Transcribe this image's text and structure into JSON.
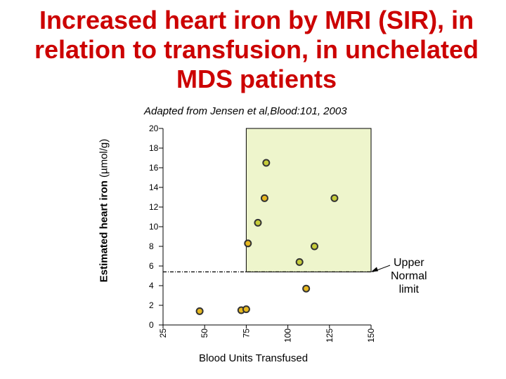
{
  "chart_data": {
    "type": "scatter",
    "title_lines": [
      "Increased  heart iron by MRI (SIR), in",
      "relation to transfusion, in unchelated",
      "MDS patients"
    ],
    "subtitle": "Adapted from Jensen et al,Blood:101,  2003",
    "xlabel": "Blood Units Transfused",
    "ylabel": "Estimated heart iron",
    "ylabel_unit": "(µmol/g)",
    "xlim": [
      25,
      150
    ],
    "ylim": [
      0,
      20
    ],
    "x_ticks": [
      "25",
      "50",
      "75",
      "100",
      "125",
      "150"
    ],
    "y_ticks": [
      "0",
      "2",
      "4",
      "6",
      "8",
      "10",
      "12",
      "14",
      "16",
      "18",
      "20"
    ],
    "shaded_region": {
      "x_from": 75,
      "x_to": 150,
      "y_from": 5.4,
      "y_to": 20,
      "color": "#eef5cc"
    },
    "threshold": {
      "y": 5.4,
      "label_lines": [
        "Upper",
        "Normal",
        "limit"
      ]
    },
    "series": [
      {
        "name": "patients",
        "x": [
          47,
          72,
          75,
          76,
          87,
          86,
          82,
          107,
          111,
          116,
          128
        ],
        "y": [
          1.4,
          1.5,
          1.6,
          8.3,
          16.5,
          12.9,
          10.4,
          6.4,
          3.7,
          8.0,
          12.9
        ],
        "colors": [
          "#e6b820",
          "#e6b820",
          "#e6b820",
          "#e6b820",
          "#c6cc3a",
          "#e6b820",
          "#c6cc3a",
          "#c6cc3a",
          "#e6b820",
          "#c6cc3a",
          "#c6cc3a"
        ]
      }
    ]
  }
}
